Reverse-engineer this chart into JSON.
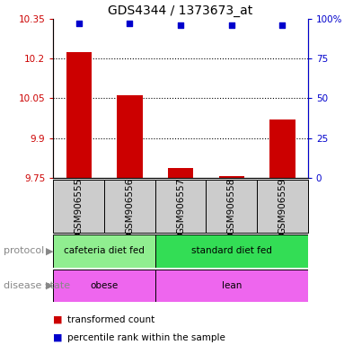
{
  "title": "GDS4344 / 1373673_at",
  "samples": [
    "GSM906555",
    "GSM906556",
    "GSM906557",
    "GSM906558",
    "GSM906559"
  ],
  "bar_values": [
    10.225,
    10.06,
    9.785,
    9.755,
    9.97
  ],
  "percentile_values": [
    97,
    97,
    96,
    96,
    96
  ],
  "ylim_left": [
    9.75,
    10.35
  ],
  "ylim_right": [
    0,
    100
  ],
  "yticks_left": [
    9.75,
    9.9,
    10.05,
    10.2,
    10.35
  ],
  "yticks_right": [
    0,
    25,
    50,
    75,
    100
  ],
  "ytick_labels_left": [
    "9.75",
    "9.9",
    "10.05",
    "10.2",
    "10.35"
  ],
  "ytick_labels_right": [
    "0",
    "25",
    "50",
    "75",
    "100%"
  ],
  "bar_color": "#cc0000",
  "dot_color": "#0000cc",
  "protocol_labels": [
    [
      "cafeteria diet fed",
      0,
      2
    ],
    [
      "standard diet fed",
      2,
      5
    ]
  ],
  "disease_labels": [
    [
      "obese",
      0,
      2
    ],
    [
      "lean",
      2,
      5
    ]
  ],
  "protocol_colors": [
    "#90ee90",
    "#33dd55"
  ],
  "disease_color": "#ee66ee",
  "sample_box_color": "#cccccc",
  "legend_items": [
    {
      "color": "#cc0000",
      "label": "transformed count"
    },
    {
      "color": "#0000cc",
      "label": "percentile rank within the sample"
    }
  ]
}
